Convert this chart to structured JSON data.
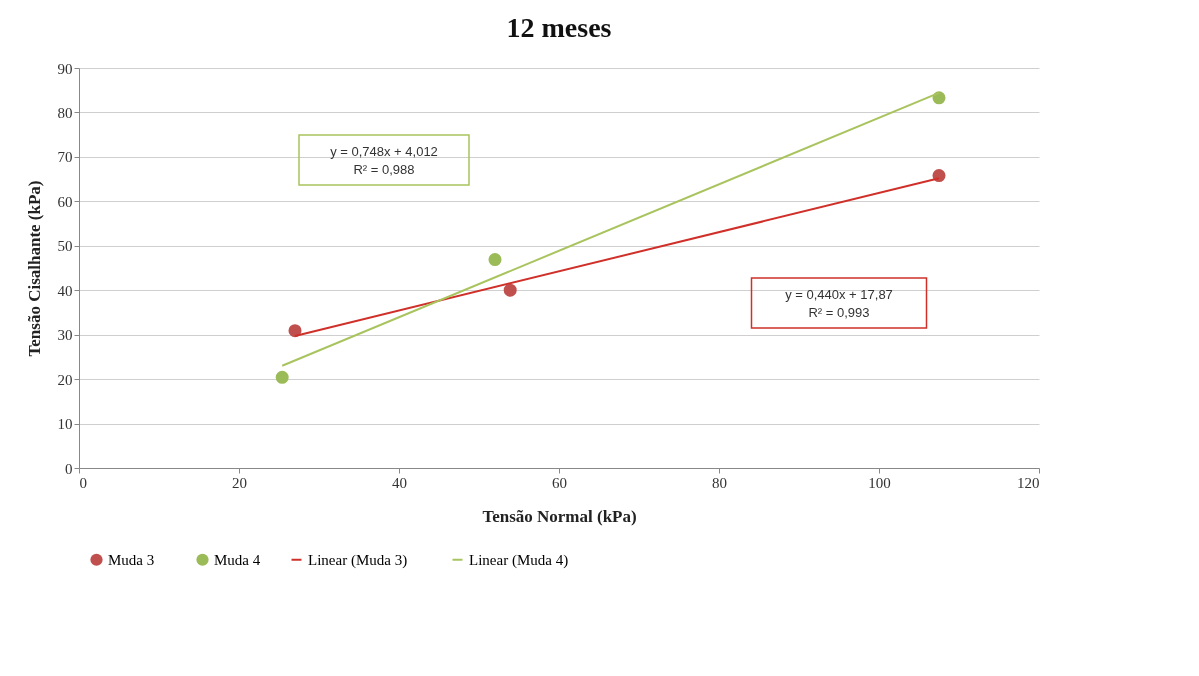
{
  "chart_data": {
    "type": "scatter",
    "title": "12 meses",
    "xlabel": "Tensão Normal (kPa)",
    "ylabel": "Tensão Cisalhante (kPa)",
    "series": [
      {
        "name": "Muda 3",
        "color": "#c0504d",
        "x": [
          27.0,
          53.9,
          107.5
        ],
        "values": [
          30.9,
          40.0,
          65.8
        ]
      },
      {
        "name": "Muda 4",
        "color": "#9bbb59",
        "x": [
          25.4,
          52.0,
          107.5
        ],
        "values": [
          20.4,
          46.9,
          83.3
        ]
      },
      {
        "name": "Linear (Muda 3)",
        "type": "line",
        "marker": "none",
        "color": "#d0302a",
        "x": [
          27.0,
          107.5
        ],
        "values": [
          29.7,
          65.2
        ]
      },
      {
        "name": "Linear (Muda 4)",
        "type": "line",
        "marker": "none",
        "color": "#a9c45e",
        "x": [
          25.4,
          107.5
        ],
        "values": [
          23.0,
          84.4
        ]
      }
    ],
    "annotations": [
      "y = 0,748x + 4,012\nR² = 0,988",
      "y = 0,440x + 17,87\nR² = 0,993"
    ],
    "xlim": [
      0,
      120
    ],
    "xticks": [
      0,
      20,
      40,
      60,
      80,
      100,
      120
    ],
    "ylim": [
      0,
      90
    ],
    "yticks": [
      0,
      10,
      20,
      30,
      40,
      50,
      60,
      70,
      80,
      90
    ],
    "grid": "y",
    "legend": "bottom",
    "marker": "circle",
    "line_style": "solid"
  }
}
